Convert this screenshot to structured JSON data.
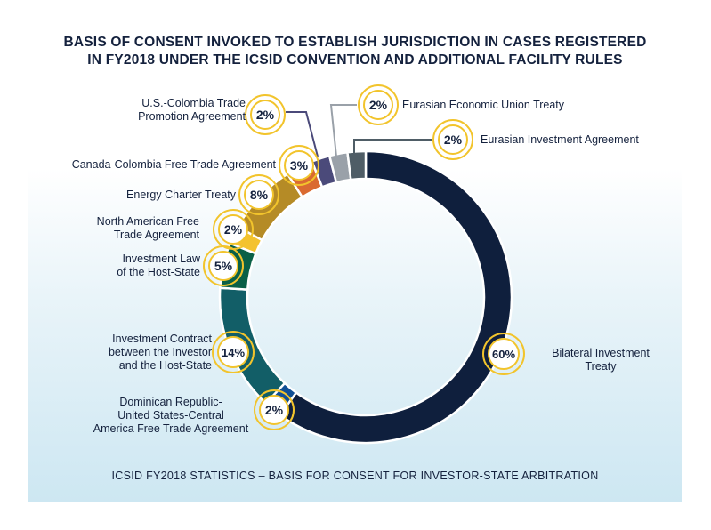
{
  "title_lines": [
    "BASIS OF CONSENT INVOKED TO ESTABLISH JURISDICTION IN CASES REGISTERED",
    "IN FY2018 UNDER THE ICSID CONVENTION AND ADDITIONAL FACILITY RULES"
  ],
  "footer": "ICSID FY2018 STATISTICS – BASIS FOR CONSENT FOR INVESTOR-STATE ARBITRATION",
  "chart_data": {
    "type": "pie",
    "variant": "donut",
    "value_unit": "%",
    "slices": [
      {
        "label_lines": [
          "Bilateral Investment",
          "Treaty"
        ],
        "value": 60,
        "value_label": "60%",
        "color": "#0f1f3d"
      },
      {
        "label_lines": [
          "Dominican Republic-",
          "United States-Central",
          "America Free Trade Agreement"
        ],
        "value": 2,
        "value_label": "2%",
        "color": "#104f95"
      },
      {
        "label_lines": [
          "Investment Contract",
          "between the Investor",
          "and the Host-State"
        ],
        "value": 14,
        "value_label": "14%",
        "color": "#125e67"
      },
      {
        "label_lines": [
          "Investment Law",
          "of the Host-State"
        ],
        "value": 5,
        "value_label": "5%",
        "color": "#0b6047"
      },
      {
        "label_lines": [
          "North American Free",
          "Trade Agreement"
        ],
        "value": 2,
        "value_label": "2%",
        "color": "#f4c22f"
      },
      {
        "label_lines": [
          "Energy Charter Treaty"
        ],
        "value": 8,
        "value_label": "8%",
        "color": "#b58b26"
      },
      {
        "label_lines": [
          "Canada-Colombia Free Trade Agreement"
        ],
        "value": 3,
        "value_label": "3%",
        "color": "#da6a31"
      },
      {
        "label_lines": [
          "U.S.-Colombia Trade",
          "Promotion Agreement"
        ],
        "value": 2,
        "value_label": "2%",
        "color": "#4b4a7a"
      },
      {
        "label_lines": [
          "Eurasian Economic Union Treaty"
        ],
        "value": 2,
        "value_label": "2%",
        "color": "#9aa1a9"
      },
      {
        "label_lines": [
          "Eurasian Investment Agreement"
        ],
        "value": 2,
        "value_label": "2%",
        "color": "#4f5d66"
      }
    ],
    "badge_ring_color": "#f2c42c",
    "leader_line_colors": [
      "#4b4a7a",
      "#9aa1a9",
      "#4f5d66"
    ]
  }
}
